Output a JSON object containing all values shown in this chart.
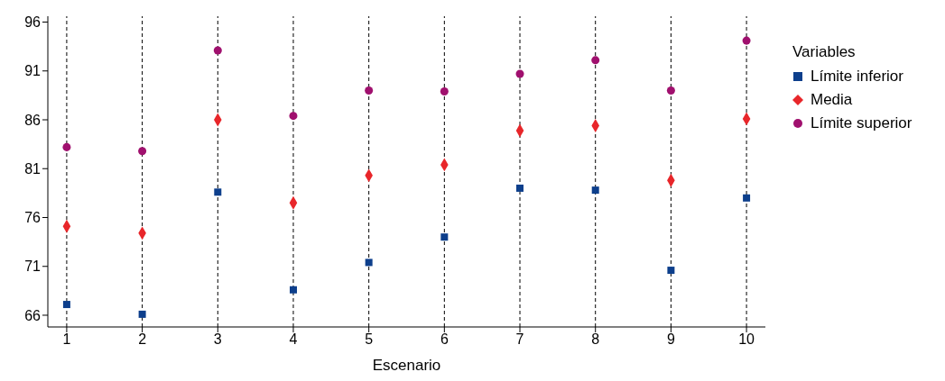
{
  "chart_data": {
    "type": "scatter",
    "xlabel": "Escenario",
    "legend_title": "Variables",
    "x": [
      1,
      2,
      3,
      4,
      5,
      6,
      7,
      8,
      9,
      10
    ],
    "xlim": [
      0.75,
      10.25
    ],
    "xticks": [
      1,
      2,
      3,
      4,
      5,
      6,
      7,
      8,
      9,
      10
    ],
    "ylim": [
      64.8,
      96.6
    ],
    "yticks": [
      66,
      71,
      76,
      81,
      86,
      91,
      96
    ],
    "grid": "x",
    "line_style": "dashed",
    "legend": "top right",
    "series": [
      {
        "name": "Límite inferior",
        "color": "#0d3f8c",
        "marker": "square",
        "values": [
          67.1,
          66.1,
          78.6,
          68.6,
          71.4,
          74.0,
          79.0,
          78.8,
          70.6,
          78.0
        ]
      },
      {
        "name": "Media",
        "color": "#e8262a",
        "marker": "diamond",
        "values": [
          75.1,
          74.4,
          86.0,
          77.5,
          80.3,
          81.4,
          84.9,
          85.4,
          79.8,
          86.1
        ]
      },
      {
        "name": "Límite superior",
        "color": "#a0106e",
        "marker": "circle",
        "values": [
          83.2,
          82.8,
          93.1,
          86.4,
          89.0,
          88.9,
          90.7,
          92.1,
          89.0,
          94.1
        ]
      }
    ]
  }
}
